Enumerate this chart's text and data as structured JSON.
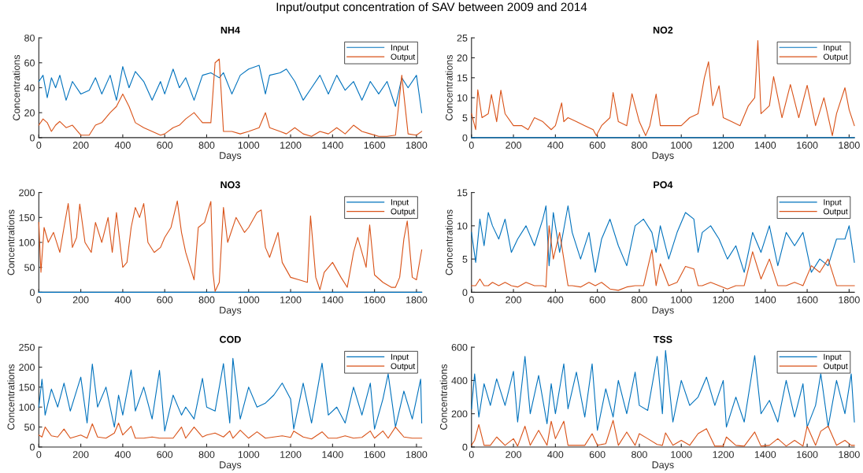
{
  "chart_data": [
    {
      "type": "line",
      "title": "NH4",
      "subtitle": "Input/output concentration of SAV between 2009 and 2014",
      "xlabel": "Days",
      "ylabel": "Concentrations",
      "xlim": [
        0,
        1825
      ],
      "xticks": [
        0,
        200,
        400,
        600,
        800,
        1000,
        1200,
        1400,
        1600,
        1800
      ],
      "ylim": [
        0,
        80
      ],
      "yticks": [
        0,
        20,
        40,
        60,
        80
      ],
      "grid": false,
      "legend": "top right",
      "x": [
        0,
        20,
        40,
        60,
        80,
        100,
        130,
        160,
        200,
        240,
        270,
        300,
        340,
        370,
        400,
        430,
        460,
        500,
        540,
        580,
        600,
        640,
        670,
        700,
        740,
        780,
        820,
        840,
        860,
        880,
        920,
        960,
        1000,
        1050,
        1080,
        1100,
        1150,
        1180,
        1220,
        1260,
        1300,
        1340,
        1380,
        1420,
        1460,
        1500,
        1540,
        1580,
        1620,
        1660,
        1700,
        1730,
        1760,
        1800,
        1825
      ],
      "series": [
        {
          "name": "Input",
          "color": "#0072bd",
          "values": [
            45,
            50,
            32,
            48,
            40,
            50,
            30,
            45,
            35,
            38,
            48,
            35,
            50,
            30,
            57,
            40,
            53,
            45,
            30,
            45,
            35,
            55,
            40,
            48,
            30,
            50,
            52,
            50,
            48,
            52,
            35,
            50,
            55,
            58,
            35,
            50,
            52,
            55,
            45,
            30,
            40,
            50,
            35,
            50,
            38,
            45,
            30,
            45,
            35,
            45,
            25,
            48,
            40,
            50,
            20
          ]
        },
        {
          "name": "Output",
          "color": "#d95319",
          "values": [
            10,
            15,
            12,
            5,
            10,
            13,
            8,
            10,
            2,
            2,
            10,
            12,
            20,
            25,
            35,
            25,
            12,
            8,
            5,
            2,
            3,
            8,
            10,
            15,
            20,
            12,
            12,
            60,
            63,
            5,
            5,
            3,
            5,
            8,
            20,
            8,
            5,
            3,
            8,
            3,
            1,
            5,
            3,
            8,
            3,
            10,
            5,
            3,
            1,
            1,
            2,
            50,
            3,
            2,
            5
          ]
        }
      ]
    },
    {
      "type": "line",
      "title": "NO2",
      "xlabel": "Days",
      "ylabel": "Concentrations",
      "xlim": [
        0,
        1825
      ],
      "xticks": [
        0,
        200,
        400,
        600,
        800,
        1000,
        1200,
        1400,
        1600,
        1800
      ],
      "ylim": [
        0,
        25
      ],
      "yticks": [
        0,
        5,
        10,
        15,
        20,
        25
      ],
      "grid": false,
      "legend": "top right",
      "series": [
        {
          "name": "Input",
          "color": "#0072bd",
          "x": [
            0,
            1825
          ],
          "values": [
            0,
            0
          ]
        },
        {
          "name": "Output",
          "color": "#d95319",
          "x": [
            0,
            20,
            30,
            50,
            80,
            95,
            120,
            140,
            160,
            200,
            240,
            270,
            300,
            340,
            380,
            400,
            430,
            440,
            460,
            500,
            540,
            580,
            595,
            620,
            660,
            675,
            700,
            740,
            765,
            800,
            830,
            850,
            880,
            900,
            950,
            1000,
            1040,
            1080,
            1110,
            1130,
            1150,
            1180,
            1200,
            1240,
            1280,
            1320,
            1350,
            1365,
            1380,
            1420,
            1440,
            1480,
            1520,
            1560,
            1600,
            1640,
            1680,
            1720,
            1740,
            1780,
            1800,
            1825
          ],
          "values": [
            6,
            2,
            12,
            5,
            6,
            10.8,
            4,
            11.9,
            6,
            3,
            3,
            2,
            5,
            4,
            2,
            3,
            8.7,
            4,
            5,
            4,
            3,
            2,
            0.5,
            3,
            5,
            11.3,
            4,
            3,
            11,
            4,
            0.5,
            3,
            10.9,
            3,
            3,
            3,
            5,
            6,
            15,
            19,
            8,
            13,
            5,
            4,
            3,
            8,
            10,
            24.3,
            6,
            8,
            15.3,
            5,
            13.3,
            5,
            13.1,
            3,
            10,
            0.5,
            6,
            12.5,
            7,
            3
          ]
        }
      ]
    },
    {
      "type": "line",
      "title": "NO3",
      "xlabel": "Days",
      "ylabel": "Concentrations",
      "xlim": [
        0,
        1825
      ],
      "xticks": [
        0,
        200,
        400,
        600,
        800,
        1000,
        1200,
        1400,
        1600,
        1800
      ],
      "ylim": [
        0,
        200
      ],
      "yticks": [
        0,
        50,
        100,
        150,
        200
      ],
      "grid": false,
      "legend": "top right",
      "series": [
        {
          "name": "Input",
          "color": "#0072bd",
          "x": [
            0,
            1825
          ],
          "values": [
            0,
            0
          ]
        },
        {
          "name": "Output",
          "color": "#d95319",
          "x": [
            0,
            10,
            25,
            45,
            70,
            100,
            120,
            140,
            160,
            180,
            195,
            220,
            250,
            270,
            300,
            330,
            350,
            370,
            400,
            420,
            440,
            460,
            480,
            500,
            520,
            550,
            580,
            600,
            630,
            660,
            680,
            700,
            740,
            760,
            790,
            820,
            830,
            840,
            860,
            880,
            900,
            940,
            980,
            1000,
            1040,
            1060,
            1080,
            1100,
            1140,
            1160,
            1200,
            1240,
            1280,
            1295,
            1320,
            1340,
            1360,
            1400,
            1440,
            1470,
            1500,
            1520,
            1560,
            1577,
            1600,
            1640,
            1680,
            1700,
            1720,
            1740,
            1756,
            1780,
            1800,
            1825
          ],
          "values": [
            140,
            40,
            130,
            100,
            120,
            80,
            130,
            178,
            90,
            110,
            177,
            100,
            80,
            140,
            100,
            150,
            80,
            160,
            50,
            60,
            130,
            170,
            150,
            178,
            100,
            80,
            90,
            110,
            130,
            183,
            120,
            80,
            25,
            130,
            140,
            182,
            40,
            2,
            20,
            170,
            100,
            150,
            120,
            130,
            160,
            165,
            90,
            70,
            120,
            60,
            30,
            25,
            20,
            153,
            30,
            5,
            40,
            60,
            30,
            10,
            80,
            110,
            50,
            135,
            35,
            20,
            10,
            10,
            30,
            107,
            143,
            30,
            25,
            85
          ]
        }
      ]
    },
    {
      "type": "line",
      "title": "PO4",
      "xlabel": "Days",
      "ylabel": "Concentrations",
      "xlim": [
        0,
        1825
      ],
      "xticks": [
        0,
        200,
        400,
        600,
        800,
        1000,
        1200,
        1400,
        1600,
        1800
      ],
      "ylim": [
        0,
        15
      ],
      "yticks": [
        0,
        5,
        10,
        15
      ],
      "grid": false,
      "legend": "top right",
      "x": [
        0,
        20,
        40,
        60,
        80,
        100,
        130,
        160,
        190,
        220,
        260,
        300,
        340,
        355,
        370,
        390,
        420,
        460,
        480,
        520,
        560,
        590,
        620,
        660,
        700,
        740,
        780,
        820,
        860,
        880,
        900,
        940,
        980,
        1020,
        1060,
        1080,
        1100,
        1140,
        1180,
        1220,
        1260,
        1300,
        1340,
        1380,
        1420,
        1460,
        1500,
        1540,
        1580,
        1620,
        1660,
        1700,
        1740,
        1780,
        1800,
        1825
      ],
      "series": [
        {
          "name": "Input",
          "color": "#0072bd",
          "values": [
            9,
            4.5,
            11,
            7,
            12,
            10,
            8,
            11,
            6,
            8,
            10,
            7,
            11,
            13,
            4,
            12,
            6,
            13,
            9,
            5,
            9,
            3,
            8,
            11,
            7,
            4,
            10,
            11,
            9,
            6,
            10,
            5,
            9,
            12,
            11,
            6,
            9,
            10,
            8,
            5,
            7,
            3,
            9,
            6,
            10,
            4,
            9,
            7,
            9,
            3,
            5,
            4,
            8,
            8,
            10,
            4.5
          ]
        },
        {
          "name": "Output",
          "color": "#d95319",
          "values": [
            1,
            1,
            2,
            1,
            1,
            1.5,
            1,
            1.5,
            1,
            0.8,
            1.5,
            1,
            1,
            0.8,
            10,
            5,
            9,
            1,
            1,
            0.8,
            1.5,
            1,
            1.5,
            0.5,
            0.3,
            0.8,
            1,
            1,
            6.4,
            1,
            4.3,
            1,
            1.5,
            3.9,
            3.5,
            1,
            1,
            1.5,
            1,
            0.5,
            1,
            1,
            6.1,
            2,
            5,
            1,
            1,
            1.5,
            1,
            4,
            3,
            5,
            1,
            1,
            1,
            1
          ]
        }
      ]
    },
    {
      "type": "line",
      "title": "COD",
      "xlabel": "Days",
      "ylabel": "Concentrations",
      "xlim": [
        0,
        1825
      ],
      "xticks": [
        0,
        200,
        400,
        600,
        800,
        1000,
        1200,
        1400,
        1600,
        1800
      ],
      "ylim": [
        0,
        250
      ],
      "yticks": [
        0,
        50,
        100,
        150,
        200,
        250
      ],
      "grid": false,
      "legend": "top right",
      "x": [
        0,
        15,
        30,
        60,
        90,
        120,
        150,
        200,
        230,
        255,
        280,
        320,
        360,
        380,
        400,
        440,
        460,
        500,
        540,
        575,
        600,
        640,
        680,
        700,
        740,
        780,
        800,
        840,
        880,
        910,
        925,
        960,
        1000,
        1040,
        1080,
        1120,
        1160,
        1200,
        1215,
        1260,
        1300,
        1350,
        1380,
        1420,
        1460,
        1500,
        1540,
        1580,
        1600,
        1640,
        1665,
        1700,
        1740,
        1780,
        1820,
        1825
      ],
      "series": [
        {
          "name": "Input",
          "color": "#0072bd",
          "values": [
            100,
            170,
            80,
            145,
            100,
            160,
            90,
            175,
            60,
            208,
            100,
            150,
            50,
            130,
            80,
            193,
            90,
            150,
            70,
            192,
            40,
            130,
            80,
            100,
            70,
            172,
            100,
            90,
            209,
            60,
            222,
            70,
            150,
            100,
            110,
            130,
            160,
            120,
            45,
            160,
            60,
            210,
            80,
            100,
            60,
            150,
            80,
            160,
            45,
            120,
            183,
            50,
            140,
            70,
            170,
            60
          ]
        },
        {
          "name": "Output",
          "color": "#d95319",
          "values": [
            30,
            25,
            50,
            28,
            25,
            45,
            22,
            30,
            22,
            58,
            25,
            22,
            35,
            60,
            30,
            52,
            22,
            22,
            25,
            22,
            22,
            22,
            50,
            22,
            50,
            25,
            30,
            35,
            25,
            40,
            22,
            42,
            22,
            38,
            22,
            25,
            28,
            24,
            40,
            25,
            20,
            38,
            22,
            22,
            28,
            22,
            24,
            40,
            22,
            40,
            22,
            50,
            25,
            22,
            22,
            22
          ]
        }
      ]
    },
    {
      "type": "line",
      "title": "TSS",
      "xlabel": "Days",
      "ylabel": "Concentrations",
      "xlim": [
        0,
        1825
      ],
      "xticks": [
        0,
        200,
        400,
        600,
        800,
        1000,
        1200,
        1400,
        1600,
        1800
      ],
      "ylim": [
        0,
        600
      ],
      "yticks": [
        0,
        200,
        400,
        600
      ],
      "grid": false,
      "legend": "top right",
      "x": [
        0,
        15,
        35,
        60,
        90,
        120,
        160,
        200,
        220,
        255,
        280,
        320,
        360,
        380,
        400,
        440,
        460,
        500,
        540,
        575,
        600,
        640,
        675,
        700,
        740,
        780,
        800,
        840,
        885,
        910,
        925,
        960,
        1000,
        1040,
        1080,
        1120,
        1160,
        1200,
        1215,
        1260,
        1300,
        1350,
        1380,
        1420,
        1460,
        1500,
        1540,
        1580,
        1600,
        1640,
        1665,
        1700,
        1740,
        1780,
        1810,
        1825
      ],
      "series": [
        {
          "name": "Input",
          "color": "#0072bd",
          "values": [
            230,
            440,
            180,
            380,
            250,
            410,
            250,
            455,
            150,
            545,
            200,
            430,
            140,
            380,
            200,
            500,
            230,
            450,
            180,
            500,
            100,
            350,
            180,
            400,
            200,
            450,
            250,
            220,
            545,
            200,
            580,
            150,
            400,
            250,
            300,
            420,
            250,
            400,
            120,
            300,
            150,
            550,
            200,
            280,
            150,
            400,
            180,
            380,
            120,
            250,
            440,
            120,
            400,
            200,
            440,
            150
          ]
        },
        {
          "name": "Output",
          "color": "#d95319",
          "values": [
            10,
            40,
            135,
            10,
            10,
            60,
            10,
            50,
            5,
            125,
            10,
            100,
            10,
            155,
            50,
            155,
            10,
            10,
            10,
            80,
            10,
            20,
            160,
            10,
            90,
            10,
            80,
            50,
            15,
            10,
            85,
            10,
            40,
            10,
            80,
            110,
            5,
            5,
            60,
            10,
            5,
            90,
            5,
            10,
            50,
            5,
            40,
            5,
            125,
            10,
            95,
            125,
            10,
            40,
            10,
            10
          ]
        }
      ]
    }
  ]
}
